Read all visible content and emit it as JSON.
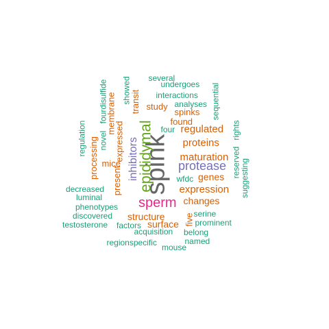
{
  "palette": {
    "green": "#1b9e77",
    "orange": "#d95f02",
    "purple": "#7570b3",
    "magenta": "#e7298a",
    "olive": "#66a61e",
    "gray": "#666666"
  },
  "words": [
    {
      "text": "spink",
      "color": "gray",
      "vertical": true
    },
    {
      "text": "epididymal",
      "color": "olive",
      "vertical": true
    },
    {
      "text": "sperm",
      "color": "magenta",
      "vertical": false
    },
    {
      "text": "protease",
      "color": "purple",
      "vertical": false
    },
    {
      "text": "inhibitors",
      "color": "purple",
      "vertical": true
    },
    {
      "text": "maturation",
      "color": "orange",
      "vertical": false
    },
    {
      "text": "expression",
      "color": "orange",
      "vertical": false
    },
    {
      "text": "proteins",
      "color": "orange",
      "vertical": false
    },
    {
      "text": "regulated",
      "color": "orange",
      "vertical": false
    },
    {
      "text": "genes",
      "color": "orange",
      "vertical": false
    },
    {
      "text": "surface",
      "color": "orange",
      "vertical": false
    },
    {
      "text": "structure",
      "color": "orange",
      "vertical": false
    },
    {
      "text": "changes",
      "color": "orange",
      "vertical": false
    },
    {
      "text": "found",
      "color": "orange",
      "vertical": false
    },
    {
      "text": "spinks",
      "color": "orange",
      "vertical": false
    },
    {
      "text": "study",
      "color": "orange",
      "vertical": false
    },
    {
      "text": "mice",
      "color": "orange",
      "vertical": false
    },
    {
      "text": "processing",
      "color": "orange",
      "vertical": true
    },
    {
      "text": "expressed",
      "color": "orange",
      "vertical": true
    },
    {
      "text": "membrane",
      "color": "orange",
      "vertical": true
    },
    {
      "text": "present",
      "color": "orange",
      "vertical": true
    },
    {
      "text": "transit",
      "color": "orange",
      "vertical": true
    },
    {
      "text": "five",
      "color": "orange",
      "vertical": true
    },
    {
      "text": "four",
      "color": "green",
      "vertical": false
    },
    {
      "text": "wfdc",
      "color": "green",
      "vertical": false
    },
    {
      "text": "several",
      "color": "green",
      "vertical": false
    },
    {
      "text": "undergoes",
      "color": "green",
      "vertical": false
    },
    {
      "text": "interactions",
      "color": "green",
      "vertical": false
    },
    {
      "text": "analyses",
      "color": "green",
      "vertical": false
    },
    {
      "text": "sequential",
      "color": "green",
      "vertical": true
    },
    {
      "text": "showed",
      "color": "green",
      "vertical": true
    },
    {
      "text": "fourdisulfide",
      "color": "green",
      "vertical": true
    },
    {
      "text": "novel",
      "color": "green",
      "vertical": true
    },
    {
      "text": "regulation",
      "color": "green",
      "vertical": true
    },
    {
      "text": "reserved",
      "color": "green",
      "vertical": true
    },
    {
      "text": "rights",
      "color": "green",
      "vertical": true
    },
    {
      "text": "suggesting",
      "color": "green",
      "vertical": true
    },
    {
      "text": "decreased",
      "color": "green",
      "vertical": false
    },
    {
      "text": "luminal",
      "color": "green",
      "vertical": false
    },
    {
      "text": "phenotypes",
      "color": "green",
      "vertical": false
    },
    {
      "text": "discovered",
      "color": "green",
      "vertical": false
    },
    {
      "text": "testosterone",
      "color": "green",
      "vertical": false
    },
    {
      "text": "factors",
      "color": "green",
      "vertical": false
    },
    {
      "text": "acquisition",
      "color": "green",
      "vertical": false
    },
    {
      "text": "serine",
      "color": "green",
      "vertical": false
    },
    {
      "text": "prominent",
      "color": "green",
      "vertical": false
    },
    {
      "text": "belong",
      "color": "green",
      "vertical": false
    },
    {
      "text": "named",
      "color": "green",
      "vertical": false
    },
    {
      "text": "regionspecific",
      "color": "green",
      "vertical": false
    },
    {
      "text": "mouse",
      "color": "green",
      "vertical": false
    }
  ]
}
